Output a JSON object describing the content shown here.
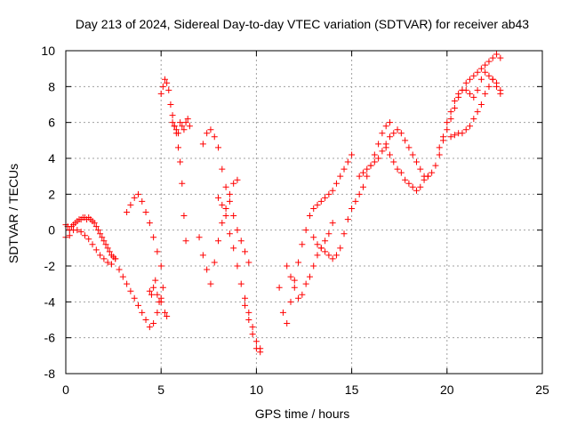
{
  "chart_data": {
    "type": "scatter",
    "title": "Day 213 of 2024, Sidereal Day-to-day VTEC variation (SDTVAR) for receiver ab43",
    "xlabel": "GPS time / hours",
    "ylabel": "SDTVAR / TECUs",
    "xlim": [
      0,
      25
    ],
    "ylim": [
      -8,
      10
    ],
    "xticks": [
      0,
      5,
      10,
      15,
      20,
      25
    ],
    "xtick_labels": [
      "0",
      "5",
      "10",
      "15",
      "20",
      "25"
    ],
    "yticks": [
      -8,
      -6,
      -4,
      -2,
      0,
      2,
      4,
      6,
      8,
      10
    ],
    "ytick_labels": [
      "-8",
      "-6",
      "-4",
      "-2",
      "0",
      "2",
      "4",
      "6",
      "8",
      "10"
    ],
    "grid": true,
    "marker": "+",
    "color": "#ff0000",
    "series": [
      {
        "x": [
          0.0,
          0.1,
          0.2,
          0.3,
          0.4,
          0.5,
          0.6,
          0.7,
          0.8,
          0.9,
          1.0,
          1.1,
          1.2,
          1.3,
          1.4,
          1.5,
          1.6,
          1.7,
          1.8,
          1.9,
          2.0,
          2.1,
          2.2,
          2.3,
          2.4,
          2.5,
          2.6,
          0.0,
          0.2,
          0.4,
          0.6,
          0.8,
          1.0,
          1.2,
          1.4,
          1.6,
          1.8,
          2.0,
          2.2,
          2.4,
          2.6,
          2.8,
          3.0,
          3.2,
          3.4,
          3.6,
          3.8,
          4.0,
          4.2,
          4.4,
          4.6,
          4.8,
          5.0,
          3.2,
          3.4,
          3.6,
          3.8,
          4.0,
          4.2,
          4.4,
          4.6,
          4.8,
          5.0,
          4.4,
          4.5,
          4.6,
          4.7,
          4.8,
          4.9,
          5.0,
          5.1,
          5.2,
          5.3,
          5.0,
          5.1,
          5.2,
          5.3,
          5.4,
          5.5,
          5.6,
          5.7,
          5.8,
          5.9,
          6.0,
          6.1,
          6.2,
          6.3,
          5.6,
          5.7,
          5.8,
          5.9,
          6.0,
          6.1,
          6.2,
          6.3,
          6.4,
          6.5,
          7.0,
          7.2,
          7.4,
          7.6,
          7.8,
          8.0,
          8.2,
          8.4,
          8.6,
          8.8,
          9.0,
          7.2,
          7.4,
          7.6,
          7.8,
          8.0,
          8.2,
          8.4,
          8.6,
          8.8,
          9.0,
          9.2,
          9.4,
          9.6,
          8.0,
          8.2,
          8.4,
          8.6,
          8.8,
          9.0,
          9.2,
          9.4,
          9.6,
          9.8,
          10.0,
          10.2,
          9.4,
          9.6,
          9.8,
          10.0,
          10.2,
          11.2,
          11.4,
          11.6,
          11.8,
          12.0,
          12.2,
          12.4,
          12.6,
          12.8,
          13.0,
          13.2,
          13.4,
          13.6,
          13.8,
          14.0,
          14.2,
          14.4,
          14.6,
          14.8,
          15.0,
          11.6,
          11.8,
          12.0,
          12.2,
          12.4,
          12.6,
          12.8,
          13.0,
          13.2,
          13.4,
          13.6,
          13.8,
          14.0,
          13.0,
          13.2,
          13.4,
          13.6,
          13.8,
          14.0,
          14.2,
          14.4,
          14.6,
          14.8,
          15.0,
          15.2,
          15.4,
          15.6,
          15.8,
          16.0,
          16.2,
          16.4,
          16.6,
          16.8,
          17.0,
          15.4,
          15.6,
          15.8,
          16.0,
          16.2,
          16.4,
          16.6,
          16.8,
          17.0,
          17.2,
          17.4,
          17.6,
          17.8,
          18.0,
          18.2,
          18.4,
          18.6,
          18.8,
          19.0,
          16.8,
          17.0,
          17.2,
          17.4,
          17.6,
          17.8,
          18.0,
          18.2,
          18.4,
          18.6,
          18.8,
          19.0,
          19.2,
          19.4,
          19.6,
          19.8,
          20.0,
          20.2,
          20.4,
          20.6,
          20.8,
          21.0,
          21.2,
          21.4,
          21.6,
          21.8,
          22.0,
          22.2,
          22.4,
          22.6,
          22.8,
          19.6,
          19.8,
          20.0,
          20.2,
          20.4,
          20.6,
          20.8,
          21.0,
          21.2,
          21.4,
          21.6,
          21.8,
          22.0,
          22.2,
          22.4,
          22.6,
          22.8,
          20.2,
          20.4,
          20.6,
          20.8,
          21.0,
          21.2,
          21.4,
          21.6,
          21.8,
          22.0,
          22.2,
          22.4,
          22.6,
          22.8
        ],
        "y": [
          0.3,
          0.2,
          0.0,
          0.2,
          0.3,
          0.4,
          0.5,
          0.6,
          0.6,
          0.7,
          0.7,
          0.6,
          0.7,
          0.6,
          0.5,
          0.4,
          0.2,
          0.0,
          -0.2,
          -0.4,
          -0.6,
          -0.8,
          -1.0,
          -1.2,
          -1.4,
          -1.5,
          -1.6,
          -0.4,
          -0.3,
          0.0,
          0.0,
          -0.1,
          -0.3,
          -0.5,
          -0.8,
          -1.1,
          -1.4,
          -1.6,
          -1.8,
          -1.9,
          -1.6,
          -2.2,
          -2.6,
          -3.0,
          -3.4,
          -3.8,
          -4.2,
          -4.6,
          -5.0,
          -5.4,
          -5.2,
          -4.6,
          -4.0,
          1.0,
          1.4,
          1.8,
          2.0,
          1.6,
          1.0,
          0.4,
          -0.4,
          -1.2,
          -2.0,
          -3.4,
          -3.6,
          -3.2,
          -2.8,
          -3.6,
          -4.0,
          -3.8,
          -3.2,
          -4.6,
          -4.8,
          7.6,
          8.0,
          8.4,
          8.2,
          7.8,
          7.0,
          6.4,
          5.8,
          5.4,
          4.6,
          3.8,
          2.6,
          0.8,
          -0.6,
          6.0,
          5.8,
          5.6,
          5.4,
          6.0,
          5.8,
          5.6,
          6.0,
          6.2,
          5.8,
          -0.4,
          -1.4,
          -2.2,
          -3.0,
          -1.8,
          -0.6,
          0.4,
          1.2,
          2.0,
          2.6,
          2.8,
          4.8,
          5.4,
          5.6,
          5.2,
          4.6,
          3.4,
          2.4,
          1.6,
          0.8,
          0.0,
          -0.6,
          -1.2,
          -1.8,
          1.8,
          1.4,
          0.8,
          -0.2,
          -1.0,
          -2.0,
          -3.0,
          -3.8,
          -4.6,
          -5.4,
          -6.2,
          -6.6,
          -4.2,
          -5.0,
          -5.8,
          -6.6,
          -6.8,
          -3.2,
          -4.6,
          -5.2,
          -4.0,
          -2.8,
          -1.8,
          -0.8,
          0.0,
          0.8,
          1.2,
          1.4,
          1.6,
          1.8,
          2.0,
          2.2,
          2.6,
          3.0,
          3.4,
          3.8,
          4.2,
          -2.0,
          -2.6,
          -3.2,
          -3.8,
          -3.6,
          -3.0,
          -2.6,
          -2.0,
          -1.4,
          -1.0,
          -0.6,
          -0.2,
          0.4,
          -0.4,
          -0.8,
          -1.0,
          -1.2,
          -1.4,
          -1.6,
          -1.4,
          -1.0,
          -0.2,
          0.6,
          1.2,
          1.6,
          2.0,
          2.4,
          3.0,
          3.6,
          4.2,
          4.8,
          5.4,
          5.8,
          6.0,
          3.0,
          3.2,
          3.4,
          3.6,
          3.8,
          4.0,
          4.4,
          4.8,
          5.2,
          5.4,
          5.6,
          5.4,
          5.0,
          4.6,
          4.2,
          3.8,
          3.4,
          3.0,
          3.0,
          4.6,
          4.2,
          3.8,
          3.4,
          3.2,
          2.8,
          2.6,
          2.4,
          2.2,
          2.4,
          2.8,
          3.0,
          3.2,
          3.6,
          4.2,
          5.0,
          5.6,
          6.2,
          6.8,
          7.4,
          7.8,
          8.2,
          8.4,
          8.6,
          8.8,
          9.0,
          9.2,
          9.4,
          9.6,
          9.8,
          9.6,
          4.6,
          5.2,
          6.0,
          6.6,
          7.2,
          7.6,
          7.8,
          7.8,
          7.6,
          7.4,
          7.8,
          8.4,
          8.8,
          8.6,
          8.4,
          8.0,
          7.6,
          5.2,
          5.3,
          5.4,
          5.4,
          5.6,
          5.8,
          6.2,
          6.6,
          7.0,
          7.6,
          8.0,
          8.4,
          8.2,
          7.8
        ]
      }
    ]
  }
}
